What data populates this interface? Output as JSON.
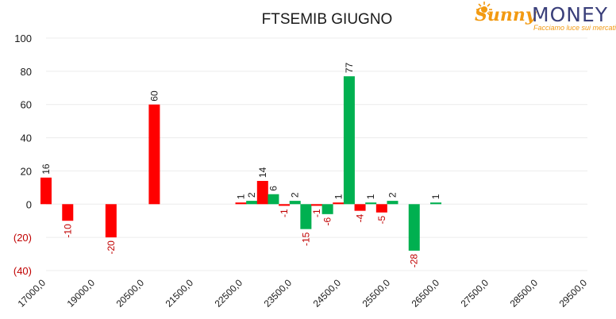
{
  "chart_data": {
    "type": "bar",
    "title": "FTSEMIB GIUGNO",
    "xlabel": "",
    "ylabel": "",
    "ylim": [
      -40,
      100
    ],
    "y_ticks": [
      "100",
      "80",
      "60",
      "40",
      "20",
      "0",
      "(20)",
      "(40)"
    ],
    "x_range": [
      17000,
      29500
    ],
    "x_ticks": [
      "17000,0",
      "19000,0",
      "20500,0",
      "21500,0",
      "22500,0",
      "23500,0",
      "24500,0",
      "25500,0",
      "26500,0",
      "27500,0",
      "28500,0",
      "29500,0"
    ],
    "grid": "horizontal",
    "legend": "none",
    "bars": [
      {
        "x": 17000,
        "value": 16,
        "label": "16"
      },
      {
        "x": 17500,
        "value": -10,
        "label": "-10"
      },
      {
        "x": 18500,
        "value": -20,
        "label": "-20"
      },
      {
        "x": 19500,
        "value": 60,
        "label": "60"
      },
      {
        "x": 21500,
        "value": 1,
        "label": "1"
      },
      {
        "x": 21750,
        "value": 2,
        "label": "2"
      },
      {
        "x": 22000,
        "value": 14,
        "label": "14"
      },
      {
        "x": 22250,
        "value": 6,
        "label": "6"
      },
      {
        "x": 22500,
        "value": -1,
        "label": "-1"
      },
      {
        "x": 22750,
        "value": 2,
        "label": "2"
      },
      {
        "x": 23000,
        "value": -15,
        "label": "-15"
      },
      {
        "x": 23250,
        "value": -1,
        "label": "-1"
      },
      {
        "x": 23500,
        "value": -6,
        "label": "-6"
      },
      {
        "x": 23750,
        "value": 1,
        "label": "1"
      },
      {
        "x": 24000,
        "value": 77,
        "label": "77"
      },
      {
        "x": 24250,
        "value": -4,
        "label": "-4"
      },
      {
        "x": 24500,
        "value": 1,
        "label": "1"
      },
      {
        "x": 24750,
        "value": -5,
        "label": "-5"
      },
      {
        "x": 25000,
        "value": 2,
        "label": "2"
      },
      {
        "x": 25500,
        "value": -28,
        "label": "-28"
      },
      {
        "x": 26000,
        "value": 1,
        "label": "1"
      }
    ],
    "colors": {
      "bar_red": "#ff0000",
      "bar_green": "#00b050",
      "negative_text": "#c00000",
      "text": "#1a1a1a",
      "grid": "#ececec"
    }
  },
  "logo": {
    "word_sunny": "Sunny",
    "word_money": "MONEY",
    "tagline": "Facciamo luce sui mercati",
    "colors": {
      "orange": "#f29a12",
      "navy": "#3a3f7a"
    }
  }
}
